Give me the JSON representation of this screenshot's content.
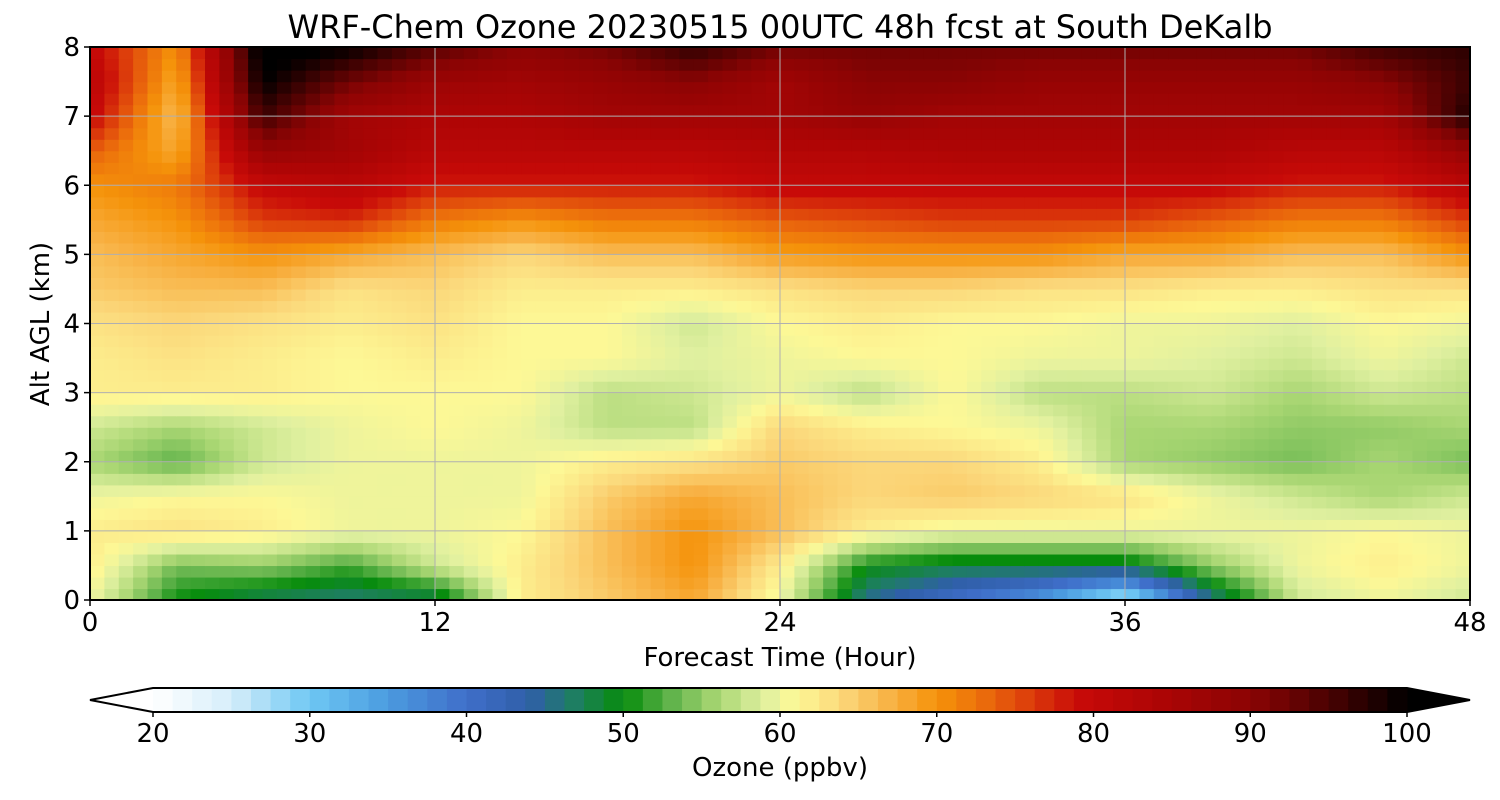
{
  "chart_data": {
    "type": "heatmap",
    "title": "WRF-Chem Ozone  20230515 00UTC 48h fcst at South DeKalb",
    "xlabel": "Forecast Time (Hour)",
    "ylabel": "Alt AGL (km)",
    "xlim": [
      0,
      48
    ],
    "ylim": [
      0,
      8
    ],
    "x_ticks": [
      "0",
      "12",
      "24",
      "36",
      "48"
    ],
    "y_ticks": [
      "0",
      "1",
      "2",
      "3",
      "4",
      "5",
      "6",
      "7",
      "8"
    ],
    "grid": true,
    "x": [
      0,
      3,
      6,
      9,
      12,
      15,
      18,
      21,
      24,
      27,
      30,
      33,
      36,
      39,
      42,
      45,
      48
    ],
    "y": [
      0,
      0.5,
      1,
      1.5,
      2,
      2.5,
      3,
      3.5,
      4,
      4.5,
      5,
      5.5,
      6,
      6.5,
      7,
      7.5,
      8
    ],
    "z": [
      [
        60,
        50,
        47,
        46,
        47,
        62,
        65,
        68,
        60,
        45,
        40,
        35,
        25,
        45,
        58,
        60,
        58
      ],
      [
        62,
        54,
        55,
        52,
        58,
        62,
        66,
        70,
        62,
        50,
        48,
        48,
        48,
        55,
        60,
        62,
        60
      ],
      [
        62,
        63,
        62,
        60,
        60,
        61,
        66,
        70,
        66,
        62,
        60,
        60,
        60,
        60,
        60,
        61,
        60
      ],
      [
        60,
        61,
        61,
        60,
        60,
        60,
        65,
        68,
        66,
        64,
        65,
        64,
        63,
        60,
        58,
        56,
        58
      ],
      [
        56,
        53,
        58,
        60,
        60,
        60,
        62,
        63,
        65,
        64,
        64,
        62,
        56,
        55,
        54,
        56,
        54
      ],
      [
        58,
        56,
        58,
        60,
        61,
        60,
        57,
        57,
        64,
        62,
        61,
        60,
        56,
        56,
        55,
        55,
        56
      ],
      [
        62,
        62,
        62,
        61,
        61,
        61,
        57,
        58,
        60,
        57,
        61,
        57,
        57,
        58,
        56,
        58,
        57
      ],
      [
        62,
        63,
        62,
        61,
        62,
        61,
        61,
        59,
        60,
        61,
        61,
        60,
        60,
        59,
        58,
        60,
        58
      ],
      [
        63,
        64,
        63,
        62,
        63,
        61,
        61,
        58,
        61,
        62,
        61,
        61,
        60,
        60,
        59,
        61,
        60
      ],
      [
        65,
        66,
        66,
        63,
        64,
        62,
        62,
        62,
        63,
        64,
        64,
        63,
        63,
        62,
        62,
        63,
        63
      ],
      [
        66,
        68,
        70,
        68,
        66,
        64,
        66,
        66,
        69,
        70,
        70,
        70,
        68,
        68,
        66,
        66,
        70
      ],
      [
        68,
        70,
        76,
        77,
        72,
        70,
        72,
        72,
        74,
        75,
        76,
        76,
        76,
        74,
        72,
        72,
        76
      ],
      [
        70,
        72,
        80,
        82,
        78,
        78,
        78,
        78,
        80,
        80,
        80,
        80,
        80,
        80,
        78,
        78,
        82
      ],
      [
        74,
        68,
        88,
        86,
        82,
        82,
        82,
        82,
        83,
        83,
        84,
        84,
        84,
        84,
        82,
        82,
        88
      ],
      [
        80,
        66,
        96,
        86,
        84,
        84,
        86,
        86,
        86,
        88,
        86,
        86,
        86,
        86,
        86,
        86,
        98
      ],
      [
        82,
        68,
        100,
        92,
        87,
        86,
        88,
        90,
        86,
        90,
        90,
        88,
        88,
        88,
        88,
        90,
        96
      ],
      [
        80,
        70,
        102,
        100,
        94,
        90,
        92,
        97,
        92,
        92,
        92,
        92,
        92,
        92,
        92,
        96,
        97
      ]
    ],
    "colorbar": {
      "label": "Ozone  (ppbv)",
      "min": 20,
      "max": 100,
      "ticks": [
        "20",
        "30",
        "40",
        "50",
        "60",
        "70",
        "80",
        "90",
        "100"
      ],
      "extend": "both",
      "stops": [
        [
          20,
          "#ffffff"
        ],
        [
          25,
          "#d6eefa"
        ],
        [
          30,
          "#6ec7f3"
        ],
        [
          35,
          "#4b9bdf"
        ],
        [
          40,
          "#3f6ec9"
        ],
        [
          44,
          "#2f5fa8"
        ],
        [
          47,
          "#1d7f5f"
        ],
        [
          50,
          "#078c0c"
        ],
        [
          53,
          "#5fb24a"
        ],
        [
          56,
          "#a9d673"
        ],
        [
          59,
          "#e0f0a0"
        ],
        [
          61,
          "#fdf896"
        ],
        [
          64,
          "#fbd77a"
        ],
        [
          67,
          "#f8b245"
        ],
        [
          70,
          "#f5930a"
        ],
        [
          73,
          "#eb6c0c"
        ],
        [
          76,
          "#dc3c0b"
        ],
        [
          79,
          "#c80a08"
        ],
        [
          84,
          "#ae0505"
        ],
        [
          90,
          "#8b0404"
        ],
        [
          95,
          "#4a0202"
        ],
        [
          100,
          "#000000"
        ]
      ],
      "under_color": "#ffffff",
      "over_color": "#000000"
    }
  }
}
